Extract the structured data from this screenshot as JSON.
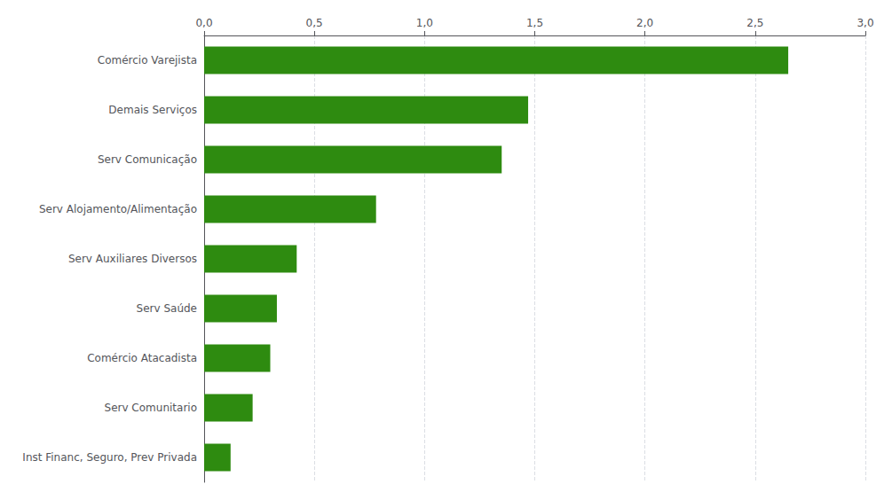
{
  "chart_data": {
    "type": "bar",
    "orientation": "horizontal",
    "categories": [
      "Inst Financ, Seguro, Prev Privada",
      "Serv Comunitario",
      "Comércio Atacadista",
      "Serv Saúde",
      "Serv Auxiliares Diversos",
      "Serv Alojamento/Alimentação",
      "Serv Comunicação",
      "Demais Serviços",
      "Comércio Varejista"
    ],
    "values": [
      0.12,
      0.22,
      0.3,
      0.33,
      0.42,
      0.78,
      1.35,
      1.47,
      2.65
    ],
    "color": "#2e8b10",
    "xlim": [
      0,
      3.0
    ],
    "xticks": [
      {
        "value": 0.0,
        "label": "0,0"
      },
      {
        "value": 0.5,
        "label": "0,5"
      },
      {
        "value": 1.0,
        "label": "1,0"
      },
      {
        "value": 1.5,
        "label": "1,5"
      },
      {
        "value": 2.0,
        "label": "2,0"
      },
      {
        "value": 2.5,
        "label": "2,5"
      },
      {
        "value": 3.0,
        "label": "3,0"
      }
    ],
    "grid": true
  }
}
